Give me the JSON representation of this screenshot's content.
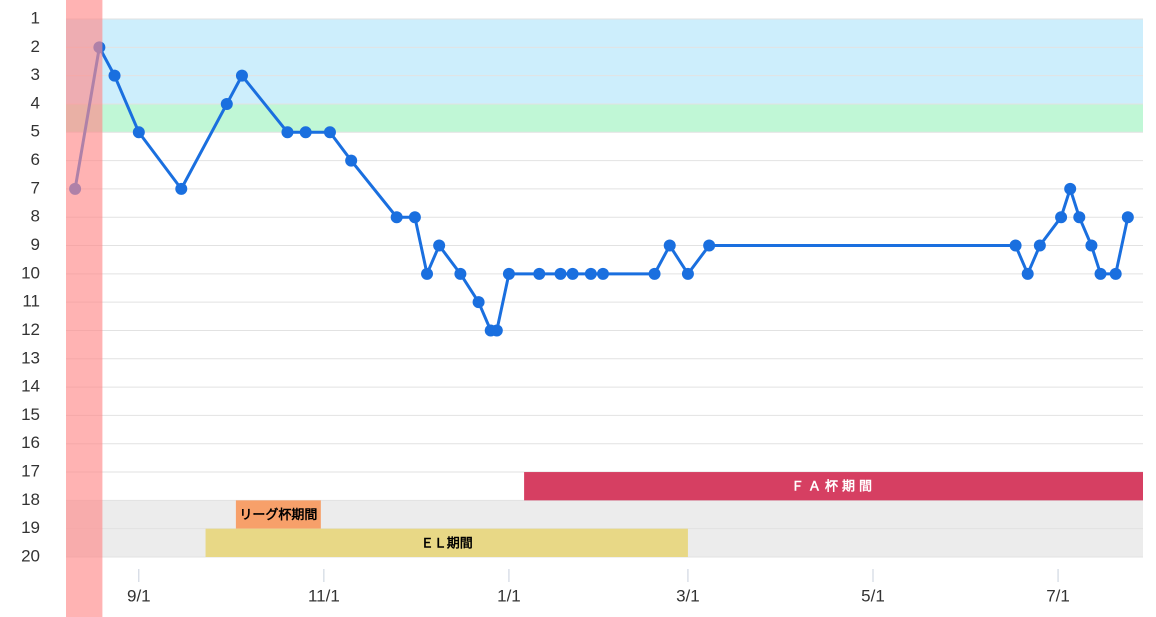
{
  "chart_data": {
    "type": "line",
    "x": [
      "8/11",
      "8/19",
      "8/24",
      "9/1",
      "9/15",
      "9/30",
      "10/5",
      "10/20",
      "10/26",
      "11/3",
      "11/10",
      "11/25",
      "12/1",
      "12/5",
      "12/9",
      "12/16",
      "12/22",
      "12/26",
      "12/28",
      "1/1",
      "1/11",
      "1/18",
      "1/22",
      "1/28",
      "2/1",
      "2/18",
      "2/23",
      "3/1",
      "3/8",
      "6/17",
      "6/21",
      "6/25",
      "7/2",
      "7/5",
      "7/8",
      "7/12",
      "7/15",
      "7/20",
      "7/24"
    ],
    "values": [
      7,
      2,
      3,
      5,
      7,
      4,
      3,
      5,
      5,
      5,
      6,
      8,
      8,
      10,
      9,
      10,
      11,
      12,
      12,
      10,
      10,
      10,
      10,
      10,
      10,
      10,
      9,
      10,
      9,
      9,
      10,
      9,
      8,
      7,
      8,
      9,
      10,
      10,
      8
    ],
    "color": "#1a6fdf",
    "xlim": [
      "8/8",
      "7/29"
    ],
    "xticks": [
      "9/1",
      "11/1",
      "1/1",
      "3/1",
      "5/1",
      "7/1"
    ],
    "ylim": [
      1,
      20
    ],
    "yticks": [
      1,
      2,
      3,
      4,
      5,
      6,
      7,
      8,
      9,
      10,
      11,
      12,
      13,
      14,
      15,
      16,
      17,
      18,
      19,
      20
    ],
    "y_inverted": true,
    "grid": true,
    "bands": [
      {
        "y": [
          1,
          4
        ],
        "color": "#cdeefc"
      },
      {
        "y": [
          4,
          5
        ],
        "color": "#c0f7d6"
      },
      {
        "y": [
          18,
          20
        ],
        "color": "#ececec"
      }
    ],
    "highlight": {
      "x": [
        "8/8",
        "8/20"
      ],
      "color": "#ff8a8a"
    },
    "periods": [
      {
        "label": "ＦＡ杯期間",
        "start": "1/6",
        "end": "7/29",
        "y": [
          17,
          18
        ],
        "color": "#d63f62",
        "text_color": "#ffffff"
      },
      {
        "label": "リーグ杯期間",
        "start": "10/3",
        "end": "10/31",
        "y": [
          18,
          19
        ],
        "color": "#f7a06a",
        "text_color": "#000000"
      },
      {
        "label": "ＥＬ期間",
        "start": "9/23",
        "end": "3/1",
        "y": [
          19,
          20
        ],
        "color": "#e8d886",
        "text_color": "#000000"
      }
    ]
  }
}
